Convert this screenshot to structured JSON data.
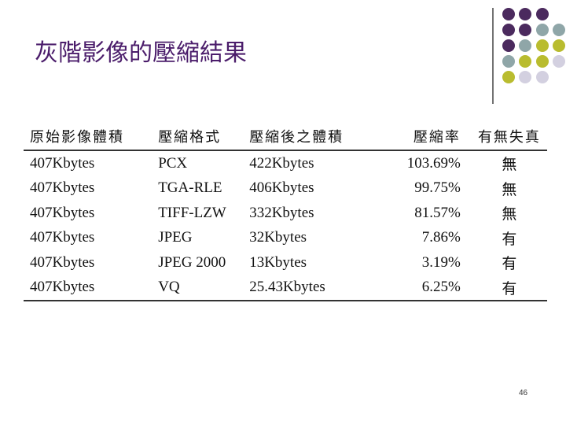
{
  "header": {
    "title": "灰階影像的壓縮結果"
  },
  "table": {
    "columns": [
      "原始影像體積",
      "壓縮格式",
      "壓縮後之體積",
      "壓縮率",
      "有無失真"
    ],
    "rows": [
      [
        "407Kbytes",
        "PCX",
        "422Kbytes",
        "103.69%",
        "無"
      ],
      [
        "407Kbytes",
        "TGA-RLE",
        "406Kbytes",
        "99.75%",
        "無"
      ],
      [
        "407Kbytes",
        "TIFF-LZW",
        "332Kbytes",
        "81.57%",
        "無"
      ],
      [
        "407Kbytes",
        "JPEG",
        "32Kbytes",
        "7.86%",
        "有"
      ],
      [
        "407Kbytes",
        "JPEG 2000",
        "13Kbytes",
        "3.19%",
        "有"
      ],
      [
        "407Kbytes",
        "VQ",
        "25.43Kbytes",
        "6.25%",
        "有"
      ]
    ]
  },
  "footer": {
    "page_number": "46"
  }
}
